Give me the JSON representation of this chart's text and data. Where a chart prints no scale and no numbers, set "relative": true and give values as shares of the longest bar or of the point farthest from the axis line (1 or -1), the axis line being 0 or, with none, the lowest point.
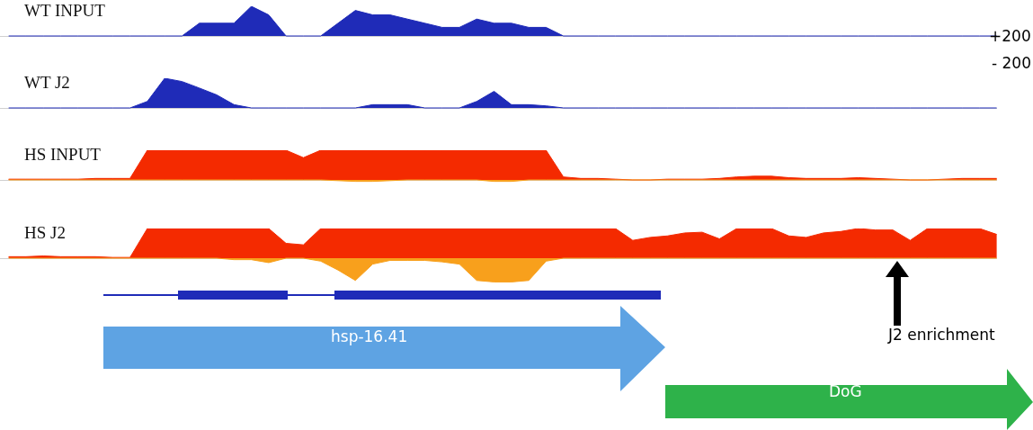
{
  "chart_data": [
    {
      "type": "area",
      "title": "WT INPUT",
      "relative": true,
      "categories": [
        null,
        null,
        null,
        null,
        null,
        null,
        null,
        null,
        null,
        null,
        null,
        null,
        null,
        null,
        null,
        null,
        null,
        null,
        null,
        null,
        null,
        null,
        null,
        null,
        null,
        null,
        null,
        null,
        null,
        null,
        null,
        null,
        null,
        null,
        null,
        null,
        null,
        null,
        null,
        null,
        null,
        null,
        null,
        null,
        null,
        null,
        null,
        null,
        null,
        null,
        null,
        null,
        null,
        null,
        null,
        null,
        null,
        null
      ],
      "series": [
        {
          "color": "#1f2bb8",
          "values": [
            0,
            0,
            0,
            0,
            0,
            0,
            0,
            0,
            0,
            0,
            0,
            0.43,
            0.43,
            0.43,
            1,
            0.71,
            0,
            0,
            0,
            0.43,
            0.86,
            0.71,
            0.71,
            0.57,
            0.43,
            0.29,
            0.29,
            0.57,
            0.43,
            0.43,
            0.29,
            0.29,
            0,
            0,
            0,
            0,
            0,
            0,
            0,
            0,
            0,
            0,
            0,
            0,
            0,
            0,
            0,
            0,
            0,
            0,
            0,
            0,
            0,
            0,
            0,
            0,
            0,
            0
          ]
        }
      ],
      "annotations": [
        "+200",
        "- 200"
      ]
    },
    {
      "type": "area",
      "title": "WT J2",
      "relative": true,
      "categories": [
        null,
        null,
        null,
        null,
        null,
        null,
        null,
        null,
        null,
        null,
        null,
        null,
        null,
        null,
        null,
        null,
        null,
        null,
        null,
        null,
        null,
        null,
        null,
        null,
        null,
        null,
        null,
        null,
        null,
        null,
        null,
        null,
        null,
        null,
        null,
        null,
        null,
        null,
        null,
        null,
        null,
        null,
        null,
        null,
        null,
        null,
        null,
        null,
        null,
        null,
        null,
        null,
        null,
        null,
        null,
        null,
        null,
        null
      ],
      "series": [
        {
          "color": "#1f2bb8",
          "values": [
            0,
            0,
            0,
            0,
            0,
            0,
            0,
            0,
            0.22,
            1,
            0.89,
            0.67,
            0.44,
            0.11,
            0,
            0,
            0,
            0,
            0,
            0,
            0,
            0.11,
            0.11,
            0.11,
            0,
            0,
            0,
            0.22,
            0.56,
            0.11,
            0.11,
            0.07,
            0,
            0,
            0,
            0,
            0,
            0,
            0,
            0,
            0,
            0,
            0,
            0,
            0,
            0,
            0,
            0,
            0,
            0,
            0,
            0,
            0,
            0,
            0,
            0,
            0,
            0
          ]
        }
      ]
    },
    {
      "type": "area",
      "title": "HS INPUT",
      "relative": true,
      "categories": [
        null,
        null,
        null,
        null,
        null,
        null,
        null,
        null,
        null,
        null,
        null,
        null,
        null,
        null,
        null,
        null,
        null,
        null,
        null,
        null,
        null,
        null,
        null,
        null,
        null,
        null,
        null,
        null,
        null,
        null,
        null,
        null,
        null,
        null,
        null,
        null,
        null,
        null,
        null,
        null,
        null,
        null,
        null,
        null,
        null,
        null,
        null,
        null,
        null,
        null,
        null,
        null,
        null,
        null,
        null,
        null,
        null,
        null
      ],
      "series": [
        {
          "color": "#f42a00",
          "values": [
            0.025,
            0.025,
            0.025,
            0.025,
            0.025,
            0.05,
            0.05,
            0.05,
            1,
            1,
            1,
            1,
            1,
            1,
            1,
            1,
            1,
            0.75,
            1,
            1,
            1,
            1,
            1,
            1,
            1,
            1,
            1,
            1,
            1,
            1,
            1,
            1,
            0.1,
            0.05,
            0.05,
            0.025,
            0,
            0,
            0.025,
            0.025,
            0.025,
            0.05,
            0.1,
            0.125,
            0.125,
            0.075,
            0.05,
            0.05,
            0.05,
            0.075,
            0.05,
            0.025,
            0,
            0,
            0.025,
            0.05,
            0.05,
            0.05
          ]
        },
        {
          "color": "#f8a01c",
          "values": [
            0,
            0,
            0,
            0,
            0,
            0,
            0,
            0,
            0,
            0,
            0,
            0,
            0,
            0,
            0,
            0,
            0,
            0,
            0,
            -0.025,
            -0.05,
            -0.05,
            -0.025,
            0,
            0,
            0,
            0,
            0,
            -0.05,
            -0.05,
            0,
            0,
            0,
            0,
            0,
            0,
            0,
            0,
            0,
            0,
            0,
            0,
            0,
            0,
            0,
            0,
            0,
            0,
            0,
            0,
            0,
            0,
            0,
            0,
            0,
            0,
            0,
            0
          ]
        }
      ]
    },
    {
      "type": "area",
      "title": "HS J2",
      "relative": true,
      "categories": [
        null,
        null,
        null,
        null,
        null,
        null,
        null,
        null,
        null,
        null,
        null,
        null,
        null,
        null,
        null,
        null,
        null,
        null,
        null,
        null,
        null,
        null,
        null,
        null,
        null,
        null,
        null,
        null,
        null,
        null,
        null,
        null,
        null,
        null,
        null,
        null,
        null,
        null,
        null,
        null,
        null,
        null,
        null,
        null,
        null,
        null,
        null,
        null,
        null,
        null,
        null,
        null,
        null,
        null,
        null,
        null,
        null,
        null
      ],
      "series": [
        {
          "color": "#f42a00",
          "values": [
            0.05,
            0.05,
            0.075,
            0.05,
            0.05,
            0.05,
            0.025,
            0.025,
            1,
            1,
            1,
            1,
            1,
            1,
            1,
            1,
            0.5,
            0.45,
            1,
            1,
            1,
            1,
            1,
            1,
            1,
            1,
            1,
            1,
            1,
            1,
            1,
            1,
            1,
            1,
            1,
            1,
            0.6,
            0.7,
            0.75,
            0.85,
            0.875,
            0.65,
            1,
            1,
            1,
            0.75,
            0.7,
            0.85,
            0.9,
            1,
            0.95,
            0.95,
            0.6,
            1,
            1,
            1,
            1,
            0.8
          ]
        },
        {
          "color": "#f8a01c",
          "values": [
            0,
            0,
            0,
            0,
            0,
            0,
            0,
            0,
            0,
            0,
            0,
            0,
            0,
            -0.05,
            -0.05,
            -0.15,
            0,
            0,
            -0.1,
            -0.4,
            -0.75,
            -0.2,
            -0.075,
            -0.075,
            -0.075,
            -0.125,
            -0.2,
            -0.75,
            -0.8,
            -0.8,
            -0.75,
            -0.1,
            0,
            0,
            0,
            0,
            0,
            0,
            0,
            0,
            0,
            0,
            0,
            0,
            0,
            0,
            0,
            0,
            0,
            0,
            0,
            0,
            0,
            0,
            0,
            0,
            0,
            0
          ]
        }
      ],
      "annotations": [
        "hsp-16.41",
        "DoG",
        "J2 enrichment"
      ]
    }
  ]
}
